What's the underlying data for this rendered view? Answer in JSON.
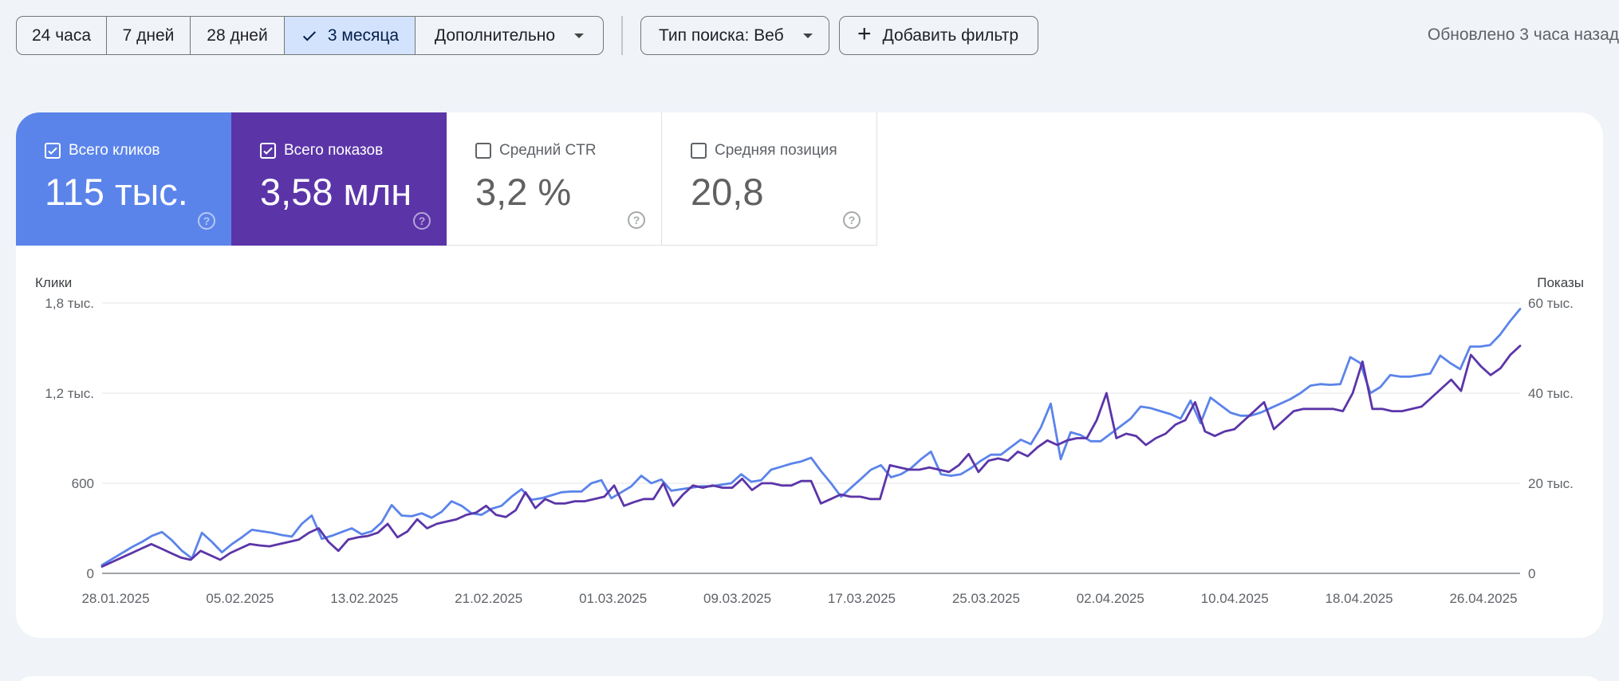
{
  "toolbar": {
    "ranges": [
      "24 часа",
      "7 дней",
      "28 дней",
      "3 месяца"
    ],
    "active_range": "3 месяца",
    "more_label": "Дополнительно",
    "search_type_label": "Тип поиска: Веб",
    "add_filter_label": "Добавить фильтр",
    "updated_text": "Обновлено 3 часа назад"
  },
  "metrics": {
    "clicks": {
      "label": "Всего кликов",
      "value": "115 тыс.",
      "checked": true,
      "color": "#5b84ea"
    },
    "impressions": {
      "label": "Всего показов",
      "value": "3,58 млн",
      "checked": true,
      "color": "#5b35a8"
    },
    "ctr": {
      "label": "Средний CTR",
      "value": "3,2 %",
      "checked": false
    },
    "position": {
      "label": "Средняя позиция",
      "value": "20,8",
      "checked": false
    }
  },
  "chart_data": {
    "type": "line",
    "left_axis_title": "Клики",
    "right_axis_title": "Показы",
    "left_ticks": [
      "0",
      "600",
      "1,2 тыс.",
      "1,8 тыс."
    ],
    "right_ticks": [
      "0",
      "20 тыс.",
      "40 тыс.",
      "60 тыс."
    ],
    "ylim_left": [
      0,
      1800
    ],
    "ylim_right": [
      0,
      60000
    ],
    "x_tick_labels": [
      "28.01.2025",
      "05.02.2025",
      "13.02.2025",
      "21.02.2025",
      "01.03.2025",
      "09.03.2025",
      "17.03.2025",
      "25.03.2025",
      "02.04.2025",
      "10.04.2025",
      "18.04.2025",
      "26.04.2025"
    ],
    "x_start": "2025-01-28",
    "x_end": "2025-04-26",
    "series": [
      {
        "name": "Всего кликов",
        "axis": "left",
        "color": "#5b84ea",
        "values": [
          55,
          95,
          135,
          175,
          210,
          250,
          275,
          220,
          150,
          100,
          270,
          210,
          140,
          195,
          240,
          290,
          280,
          270,
          255,
          245,
          330,
          385,
          230,
          250,
          275,
          300,
          260,
          280,
          340,
          455,
          385,
          380,
          400,
          370,
          410,
          480,
          450,
          400,
          390,
          430,
          450,
          510,
          560,
          490,
          500,
          520,
          540,
          545,
          545,
          600,
          620,
          500,
          540,
          580,
          650,
          600,
          625,
          550,
          560,
          570,
          580,
          580,
          590,
          600,
          660,
          610,
          620,
          690,
          710,
          730,
          745,
          770,
          680,
          600,
          510,
          570,
          630,
          690,
          720,
          640,
          660,
          700,
          760,
          810,
          660,
          650,
          660,
          700,
          750,
          790,
          790,
          840,
          890,
          860,
          970,
          1130,
          760,
          940,
          920,
          880,
          880,
          930,
          980,
          1030,
          1110,
          1100,
          1080,
          1060,
          1030,
          1150,
          1000,
          1170,
          1120,
          1070,
          1050,
          1050,
          1070,
          1100,
          1130,
          1160,
          1200,
          1250,
          1260,
          1255,
          1260,
          1440,
          1400,
          1200,
          1240,
          1320,
          1310,
          1310,
          1320,
          1330,
          1450,
          1400,
          1360,
          1510,
          1510,
          1520,
          1590,
          1680,
          1760
        ]
      },
      {
        "name": "Всего показов",
        "axis": "right",
        "color": "#5b35a8",
        "values": [
          1500,
          2500,
          3500,
          4500,
          5500,
          6500,
          5500,
          4500,
          3500,
          3000,
          5000,
          4000,
          3000,
          4500,
          5500,
          6500,
          6200,
          6000,
          6500,
          7000,
          7500,
          9000,
          10000,
          7000,
          5000,
          7500,
          8000,
          8300,
          9000,
          11000,
          8000,
          9300,
          12000,
          10000,
          11000,
          11500,
          12000,
          13000,
          13500,
          15000,
          13000,
          12500,
          14000,
          18000,
          14500,
          16500,
          15500,
          15500,
          16000,
          16000,
          16500,
          17000,
          19500,
          15000,
          15800,
          16500,
          16500,
          20000,
          15000,
          17500,
          19500,
          19000,
          19500,
          19000,
          19000,
          21000,
          18500,
          20000,
          20000,
          19500,
          19500,
          20500,
          20500,
          15500,
          16500,
          17500,
          17000,
          17000,
          16500,
          16500,
          24000,
          23500,
          23000,
          23000,
          23500,
          23000,
          22500,
          24000,
          26500,
          22500,
          25000,
          25500,
          25000,
          27000,
          26000,
          28000,
          29500,
          28500,
          29500,
          30000,
          30000,
          34000,
          40000,
          30000,
          31000,
          30500,
          28500,
          30000,
          31000,
          33000,
          34000,
          38000,
          31500,
          30500,
          31500,
          32000,
          34000,
          36000,
          38000,
          32000,
          34000,
          36000,
          36500,
          36500,
          36500,
          36500,
          36000,
          40000,
          47000,
          36500,
          36500,
          36000,
          36000,
          36500,
          37000,
          39000,
          41000,
          43000,
          40500,
          48500,
          46000,
          44000,
          45500,
          48500,
          50500
        ]
      }
    ]
  }
}
